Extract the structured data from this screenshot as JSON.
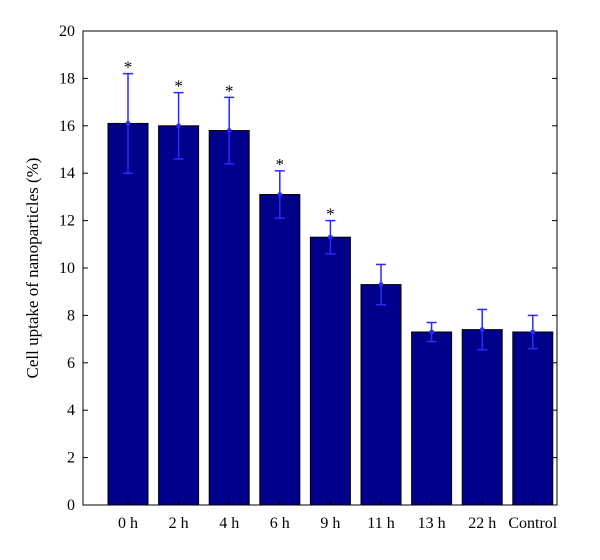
{
  "chart_data": {
    "type": "bar",
    "categories": [
      "0 h",
      "2 h",
      "4 h",
      "6 h",
      "9 h",
      "11 h",
      "13 h",
      "22 h",
      "Control"
    ],
    "values": [
      16.1,
      16.0,
      15.8,
      13.1,
      11.3,
      9.3,
      7.3,
      7.4,
      7.3
    ],
    "errors": [
      2.1,
      1.4,
      1.4,
      1.0,
      0.7,
      0.85,
      0.4,
      0.85,
      0.7
    ],
    "significance": [
      "*",
      "*",
      "*",
      "*",
      "*",
      "",
      "",
      "",
      ""
    ],
    "title": "",
    "xlabel": "",
    "ylabel": "Cell uptake of nanoparticles (%)",
    "ylim": [
      0,
      20
    ],
    "yticks": [
      0,
      2,
      4,
      6,
      8,
      10,
      12,
      14,
      16,
      18,
      20
    ],
    "grid": false,
    "legend": "none",
    "bar_color": "#00008b",
    "error_color": "#2a2aff"
  }
}
